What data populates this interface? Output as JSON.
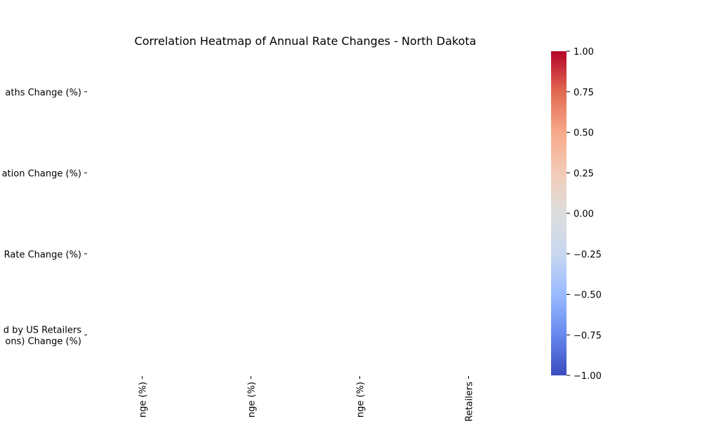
{
  "chart_data": {
    "type": "heatmap",
    "title": "Correlation Heatmap of Annual Rate Changes - North Dakota",
    "row_labels": [
      [
        "aths Change (%)"
      ],
      [
        "ation Change (%)"
      ],
      [
        "Rate Change (%)"
      ],
      [
        "d by US Retailers",
        "ons) Change (%)"
      ]
    ],
    "column_labels": [
      "nge (%)",
      "nge (%)",
      "nge (%)",
      "Retailers"
    ],
    "values": [
      [
        null,
        null,
        null,
        null
      ],
      [
        null,
        null,
        null,
        null
      ],
      [
        null,
        null,
        null,
        null
      ],
      [
        null,
        null,
        null,
        null
      ]
    ],
    "colorbar": {
      "colormap": "coolwarm",
      "range": [
        -1.0,
        1.0
      ],
      "ticks": [
        1.0,
        0.75,
        0.5,
        0.25,
        0.0,
        -0.25,
        -0.5,
        -0.75,
        -1.0
      ],
      "tick_labels": [
        "1.00",
        "0.75",
        "0.50",
        "0.25",
        "0.00",
        "−0.25",
        "−0.50",
        "−0.75",
        "−1.00"
      ],
      "colors": [
        "#3b4cc0",
        "#6788ee",
        "#9abbff",
        "#c9d7f0",
        "#dddddd",
        "#f2cbb7",
        "#f7a889",
        "#e26952",
        "#b40426"
      ]
    }
  }
}
